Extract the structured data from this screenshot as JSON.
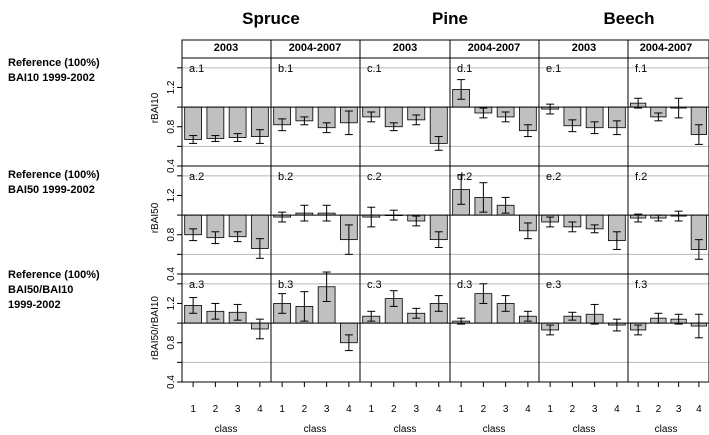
{
  "figure": {
    "species": [
      "Spruce",
      "Pine",
      "Beech"
    ],
    "periods": [
      "2003",
      "2004-2007"
    ],
    "rows": [
      {
        "ref_lines": [
          "Reference (100%)",
          "BAI10 1999-2002"
        ],
        "ylabel": "rBAI10"
      },
      {
        "ref_lines": [
          "Reference (100%)",
          "BAI50 1999-2002"
        ],
        "ylabel": "rBAI50"
      },
      {
        "ref_lines": [
          "Reference (100%)",
          "BAI50/BAI10",
          "1999-2002"
        ],
        "ylabel": "rBAI50/rBAI10"
      }
    ],
    "xlabel": "class",
    "x_ticks": [
      "1",
      "2",
      "3",
      "4"
    ],
    "y_ticks": [
      "0.4",
      "0.8",
      "1.2"
    ],
    "colors": {
      "bar": "#c0c0c0",
      "grid": "#b8b8b8",
      "axis": "#000000"
    }
  },
  "chart_data": {
    "type": "bar",
    "baseline": 1.0,
    "ylim": [
      0.4,
      1.5
    ],
    "y_ticks": [
      0.4,
      0.6,
      0.8,
      1.0,
      1.2,
      1.4
    ],
    "categories": [
      "1",
      "2",
      "3",
      "4"
    ],
    "grid": "horizontal at 0.6, 1.0, 1.4",
    "panels": [
      {
        "label": "a.1",
        "species": "Spruce",
        "period": "2003",
        "row": 1,
        "values": [
          0.67,
          0.68,
          0.69,
          0.7
        ],
        "err": [
          0.04,
          0.03,
          0.04,
          0.07
        ]
      },
      {
        "label": "b.1",
        "species": "Spruce",
        "period": "2004-2007",
        "row": 1,
        "values": [
          0.82,
          0.86,
          0.79,
          0.84
        ],
        "err": [
          0.06,
          0.04,
          0.05,
          0.12
        ]
      },
      {
        "label": "c.1",
        "species": "Pine",
        "period": "2003",
        "row": 1,
        "values": [
          0.9,
          0.8,
          0.87,
          0.63
        ],
        "err": [
          0.05,
          0.04,
          0.05,
          0.07
        ]
      },
      {
        "label": "d.1",
        "species": "Pine",
        "period": "2004-2007",
        "row": 1,
        "values": [
          1.18,
          0.94,
          0.9,
          0.76
        ],
        "err": [
          0.1,
          0.05,
          0.05,
          0.06
        ]
      },
      {
        "label": "e.1",
        "species": "Beech",
        "period": "2003",
        "row": 1,
        "values": [
          0.98,
          0.81,
          0.79,
          0.79
        ],
        "err": [
          0.05,
          0.06,
          0.06,
          0.07
        ]
      },
      {
        "label": "f.1",
        "species": "Beech",
        "period": "2004-2007",
        "row": 1,
        "values": [
          1.04,
          0.9,
          0.99,
          0.72
        ],
        "err": [
          0.05,
          0.04,
          0.1,
          0.1
        ]
      },
      {
        "label": "a.2",
        "species": "Spruce",
        "period": "2003",
        "row": 2,
        "values": [
          0.8,
          0.77,
          0.78,
          0.66
        ],
        "err": [
          0.06,
          0.06,
          0.05,
          0.1
        ]
      },
      {
        "label": "b.2",
        "species": "Spruce",
        "period": "2004-2007",
        "row": 2,
        "values": [
          0.98,
          1.02,
          1.02,
          0.75
        ],
        "err": [
          0.05,
          0.08,
          0.08,
          0.15
        ]
      },
      {
        "label": "c.2",
        "species": "Pine",
        "period": "2003",
        "row": 2,
        "values": [
          0.98,
          1.0,
          0.94,
          0.75
        ],
        "err": [
          0.1,
          0.05,
          0.05,
          0.08
        ]
      },
      {
        "label": "d.2",
        "species": "Pine",
        "period": "2004-2007",
        "row": 2,
        "values": [
          1.26,
          1.18,
          1.1,
          0.84
        ],
        "err": [
          0.15,
          0.15,
          0.08,
          0.08
        ]
      },
      {
        "label": "e.2",
        "species": "Beech",
        "period": "2003",
        "row": 2,
        "values": [
          0.93,
          0.88,
          0.86,
          0.74
        ],
        "err": [
          0.05,
          0.05,
          0.04,
          0.09
        ]
      },
      {
        "label": "f.2",
        "species": "Beech",
        "period": "2004-2007",
        "row": 2,
        "values": [
          0.97,
          0.97,
          0.99,
          0.65
        ],
        "err": [
          0.04,
          0.03,
          0.05,
          0.1
        ]
      },
      {
        "label": "a.3",
        "species": "Spruce",
        "period": "2003",
        "row": 3,
        "values": [
          1.18,
          1.12,
          1.11,
          0.94
        ],
        "err": [
          0.08,
          0.08,
          0.08,
          0.1
        ]
      },
      {
        "label": "b.3",
        "species": "Spruce",
        "period": "2004-2007",
        "row": 3,
        "values": [
          1.2,
          1.17,
          1.37,
          0.8
        ],
        "err": [
          0.1,
          0.15,
          0.15,
          0.08
        ]
      },
      {
        "label": "c.3",
        "species": "Pine",
        "period": "2003",
        "row": 3,
        "values": [
          1.07,
          1.25,
          1.1,
          1.2
        ],
        "err": [
          0.05,
          0.08,
          0.05,
          0.08
        ]
      },
      {
        "label": "d.3",
        "species": "Pine",
        "period": "2004-2007",
        "row": 3,
        "values": [
          1.02,
          1.3,
          1.2,
          1.07
        ],
        "err": [
          0.03,
          0.1,
          0.08,
          0.05
        ]
      },
      {
        "label": "e.3",
        "species": "Beech",
        "period": "2003",
        "row": 3,
        "values": [
          0.93,
          1.07,
          1.09,
          0.98
        ],
        "err": [
          0.05,
          0.04,
          0.1,
          0.06
        ]
      },
      {
        "label": "f.3",
        "species": "Beech",
        "period": "2004-2007",
        "row": 3,
        "values": [
          0.93,
          1.05,
          1.04,
          0.97
        ],
        "err": [
          0.05,
          0.05,
          0.05,
          0.12
        ]
      }
    ]
  }
}
